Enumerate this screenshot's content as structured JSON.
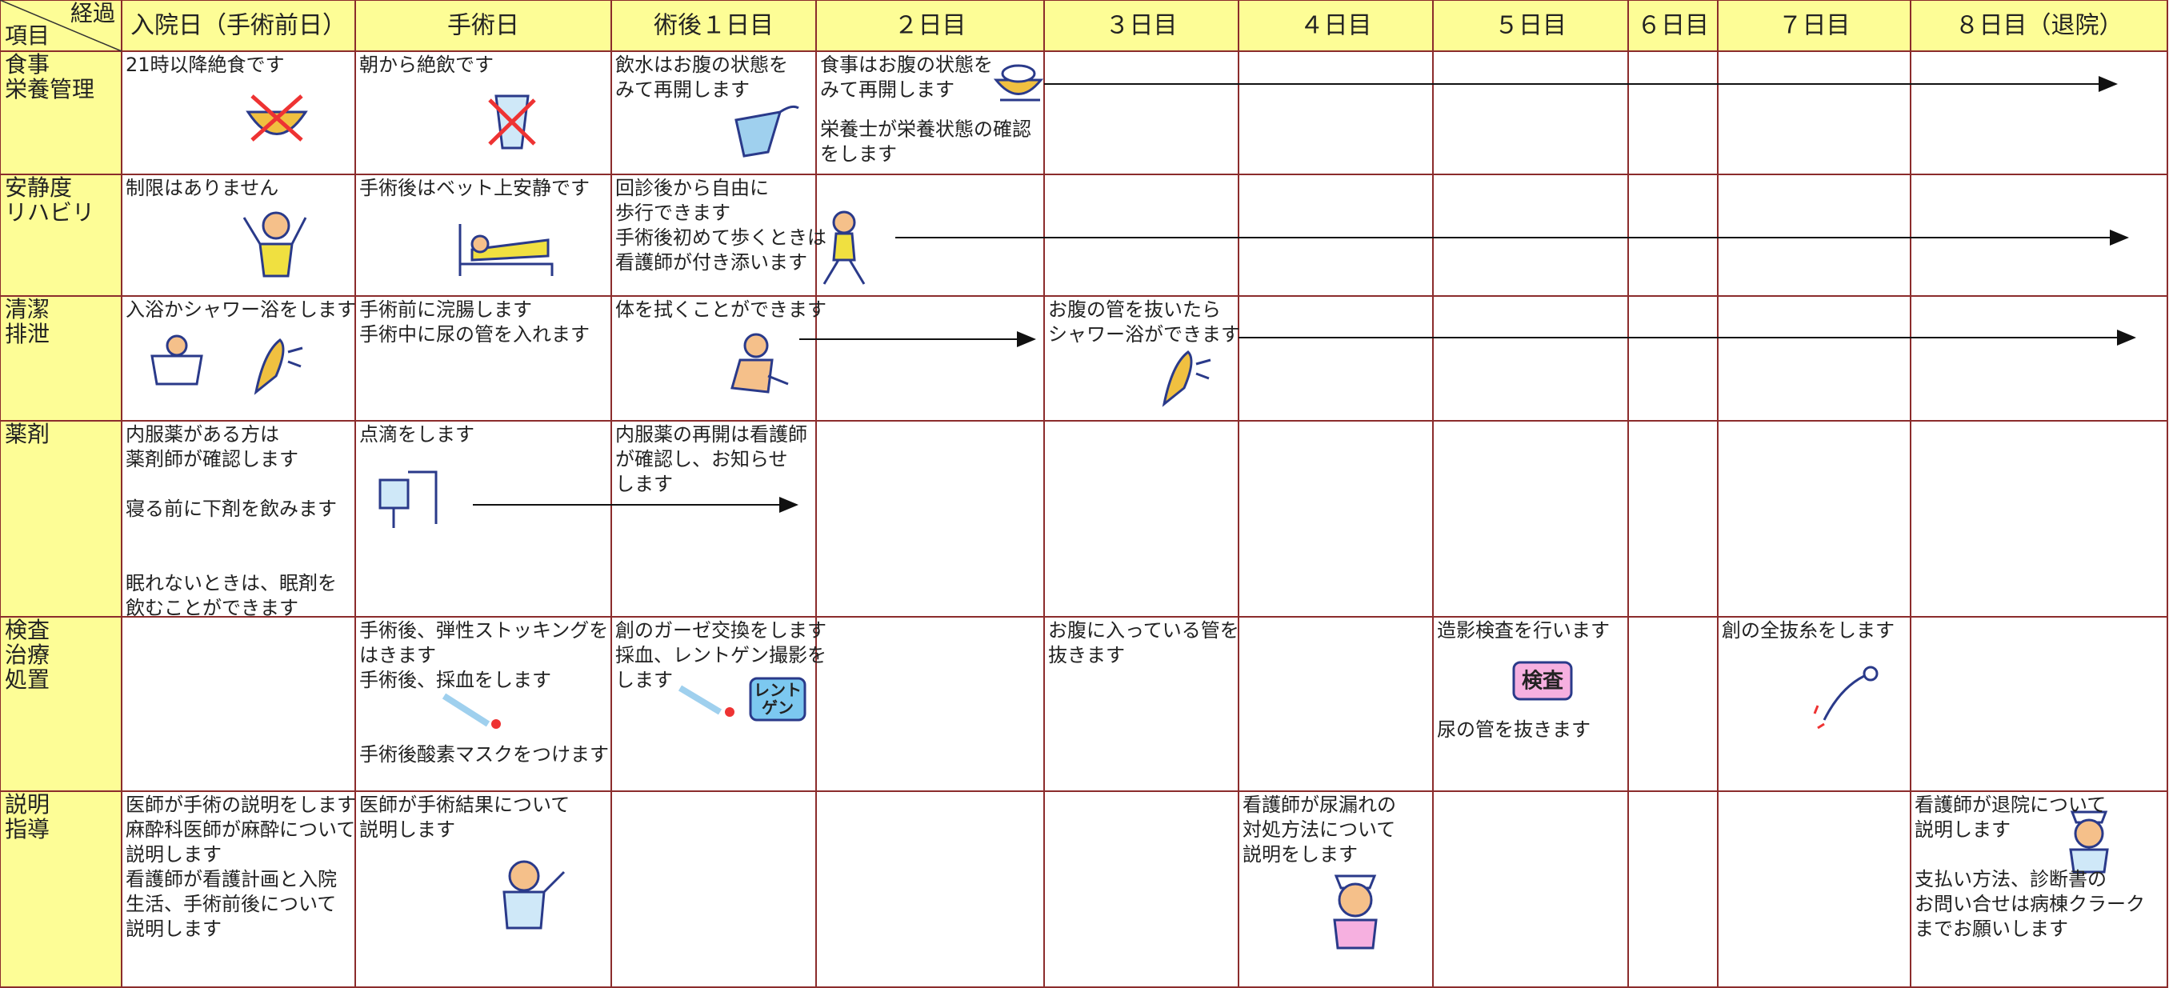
{
  "header": {
    "corner": {
      "top": "経過",
      "bottom": "項目"
    },
    "columns": [
      "入院日（手術前日）",
      "手術日",
      "術後１日目",
      "２日目",
      "３日目",
      "４日目",
      "５日目",
      "６日目",
      "７日目",
      "８日目（退院）"
    ]
  },
  "table": {
    "rows": [
      {
        "label": [
          "食事",
          "栄養管理"
        ],
        "cells": [
          [
            [
              "21時以降絶食です"
            ]
          ],
          [
            [
              "朝から絶飲です"
            ]
          ],
          [
            [
              "飲水はお腹の状態を",
              "みて再開します"
            ]
          ],
          [
            [
              "食事はお腹の状態を",
              "みて再開します"
            ],
            [
              "栄養士が栄養状態の確認",
              "をします"
            ]
          ],
          [],
          [],
          [],
          [],
          [],
          []
        ]
      },
      {
        "label": [
          "安静度",
          "リハビリ"
        ],
        "cells": [
          [
            [
              "制限はありません"
            ]
          ],
          [
            [
              "手術後はベット上安静です"
            ]
          ],
          [
            [
              "回診後から自由に",
              "歩行できます",
              "手術後初めて歩くときは",
              "看護師が付き添います"
            ]
          ],
          [],
          [],
          [],
          [],
          [],
          [],
          []
        ]
      },
      {
        "label": [
          "清潔",
          "排泄"
        ],
        "cells": [
          [
            [
              "入浴かシャワー浴をします"
            ]
          ],
          [
            [
              "手術前に浣腸します",
              "手術中に尿の管を入れます"
            ]
          ],
          [
            [
              "体を拭くことができます"
            ]
          ],
          [],
          [
            [
              "お腹の管を抜いたら",
              "シャワー浴ができます"
            ]
          ],
          [],
          [],
          [],
          [],
          []
        ]
      },
      {
        "label": [
          "薬剤"
        ],
        "cells": [
          [
            [
              "内服薬がある方は",
              "薬剤師が確認します"
            ],
            [
              "寝る前に下剤を飲みます"
            ],
            [
              "眠れないときは、眠剤を",
              "飲むことができます"
            ]
          ],
          [
            [
              "点滴をします"
            ]
          ],
          [
            [
              "内服薬の再開は看護師",
              "が確認し、お知らせ",
              "します"
            ]
          ],
          [],
          [],
          [],
          [],
          [],
          [],
          []
        ]
      },
      {
        "label": [
          "検査",
          "治療",
          "処置"
        ],
        "cells": [
          [],
          [
            [
              "手術後、弾性ストッキングを",
              "はきます",
              "手術後、採血をします"
            ],
            [
              "手術後酸素マスクをつけます"
            ]
          ],
          [
            [
              "創のガーゼ交換をします",
              "採血、レントゲン撮影を",
              "します"
            ]
          ],
          [],
          [
            [
              "お腹に入っている管を",
              "抜きます"
            ]
          ],
          [],
          [
            [
              "造影検査を行います"
            ],
            [
              "尿の管を抜きます"
            ]
          ],
          [],
          [
            [
              "創の全抜糸をします"
            ]
          ],
          []
        ],
        "badges": [
          "レント",
          "ゲン",
          "検査"
        ]
      },
      {
        "label": [
          "説明",
          "指導"
        ],
        "cells": [
          [
            [
              "医師が手術の説明をします",
              "麻酔科医師が麻酔について",
              "説明します",
              "看護師が看護計画と入院",
              "生活、手術前後について",
              "説明します"
            ]
          ],
          [
            [
              "医師が手術結果について",
              "説明します"
            ]
          ],
          [],
          [],
          [],
          [
            [
              "看護師が尿漏れの",
              "対処方法について",
              "説明をします"
            ]
          ],
          [],
          [],
          [],
          [
            [
              "看護師が退院について",
              "説明します"
            ],
            [
              "支払い方法、診断書の",
              "お問い合せは病棟クラーク",
              "までお願いします"
            ]
          ]
        ]
      }
    ]
  }
}
